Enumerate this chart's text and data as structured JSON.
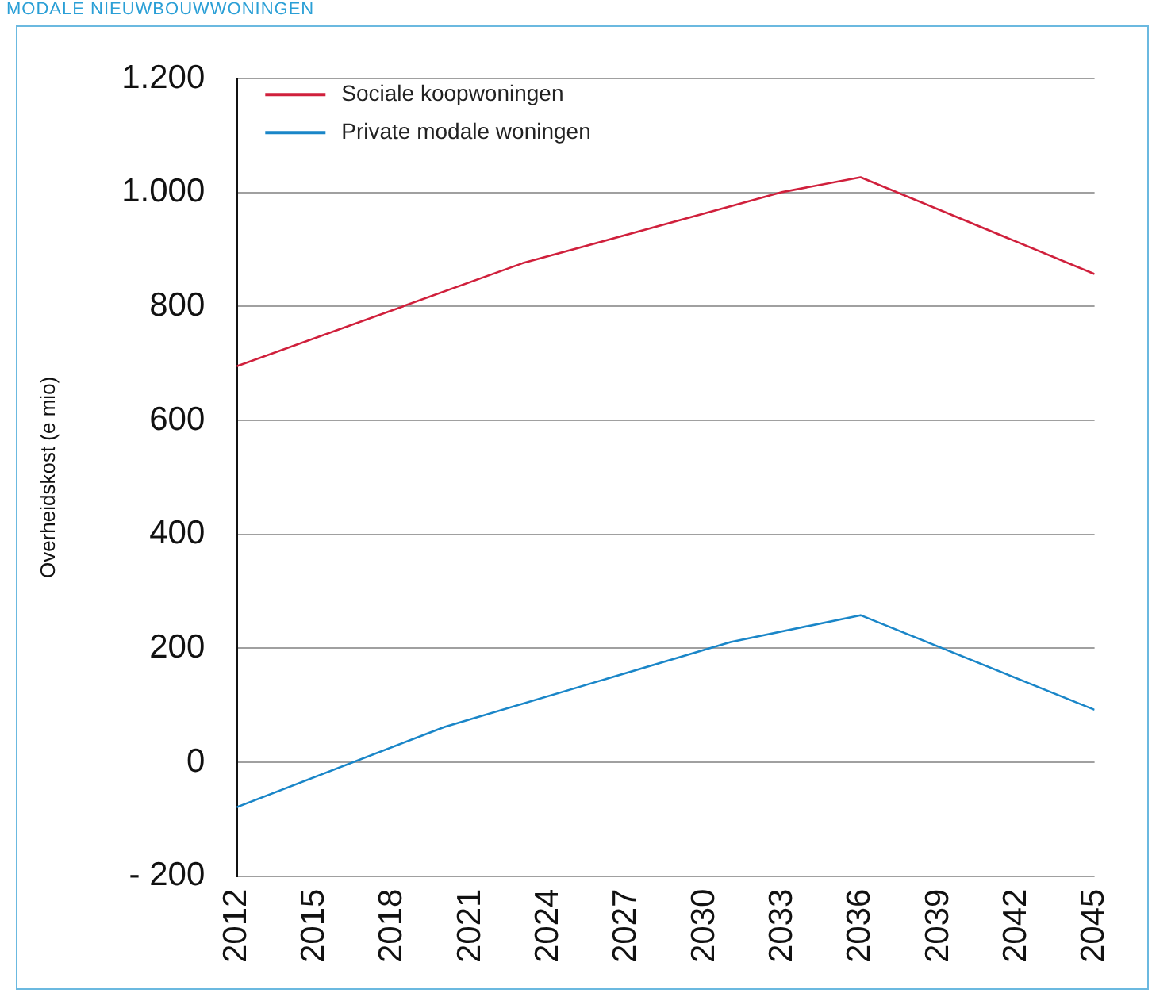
{
  "chart_data": {
    "type": "line",
    "title": "MODALE NIEUWBOUWWONINGEN",
    "ylabel": "Overheidskost (e mio)",
    "xlim": [
      2012,
      2045
    ],
    "xticks": [
      2012,
      2015,
      2018,
      2021,
      2024,
      2027,
      2030,
      2033,
      2036,
      2039,
      2042,
      2045
    ],
    "ylim": [
      -200,
      1200
    ],
    "yticks": [
      {
        "value": -200,
        "label": "- 200"
      },
      0,
      200,
      400,
      600,
      800,
      {
        "value": 1000,
        "label": "1.000"
      },
      {
        "value": 1200,
        "label": "1.200"
      }
    ],
    "grid": "y",
    "legend": "top left",
    "marker": "none",
    "series": [
      {
        "name": "Sociale koopwoningen",
        "color": "#d0203c",
        "x": [
          2012,
          2023,
          2033,
          2036,
          2045
        ],
        "values": [
          695,
          876,
          1001,
          1027,
          857
        ]
      },
      {
        "name": "Private modale woningen",
        "color": "#1a86c8",
        "x": [
          2012,
          2020,
          2031,
          2036,
          2045
        ],
        "values": [
          -79,
          62,
          211,
          258,
          92
        ]
      }
    ]
  }
}
